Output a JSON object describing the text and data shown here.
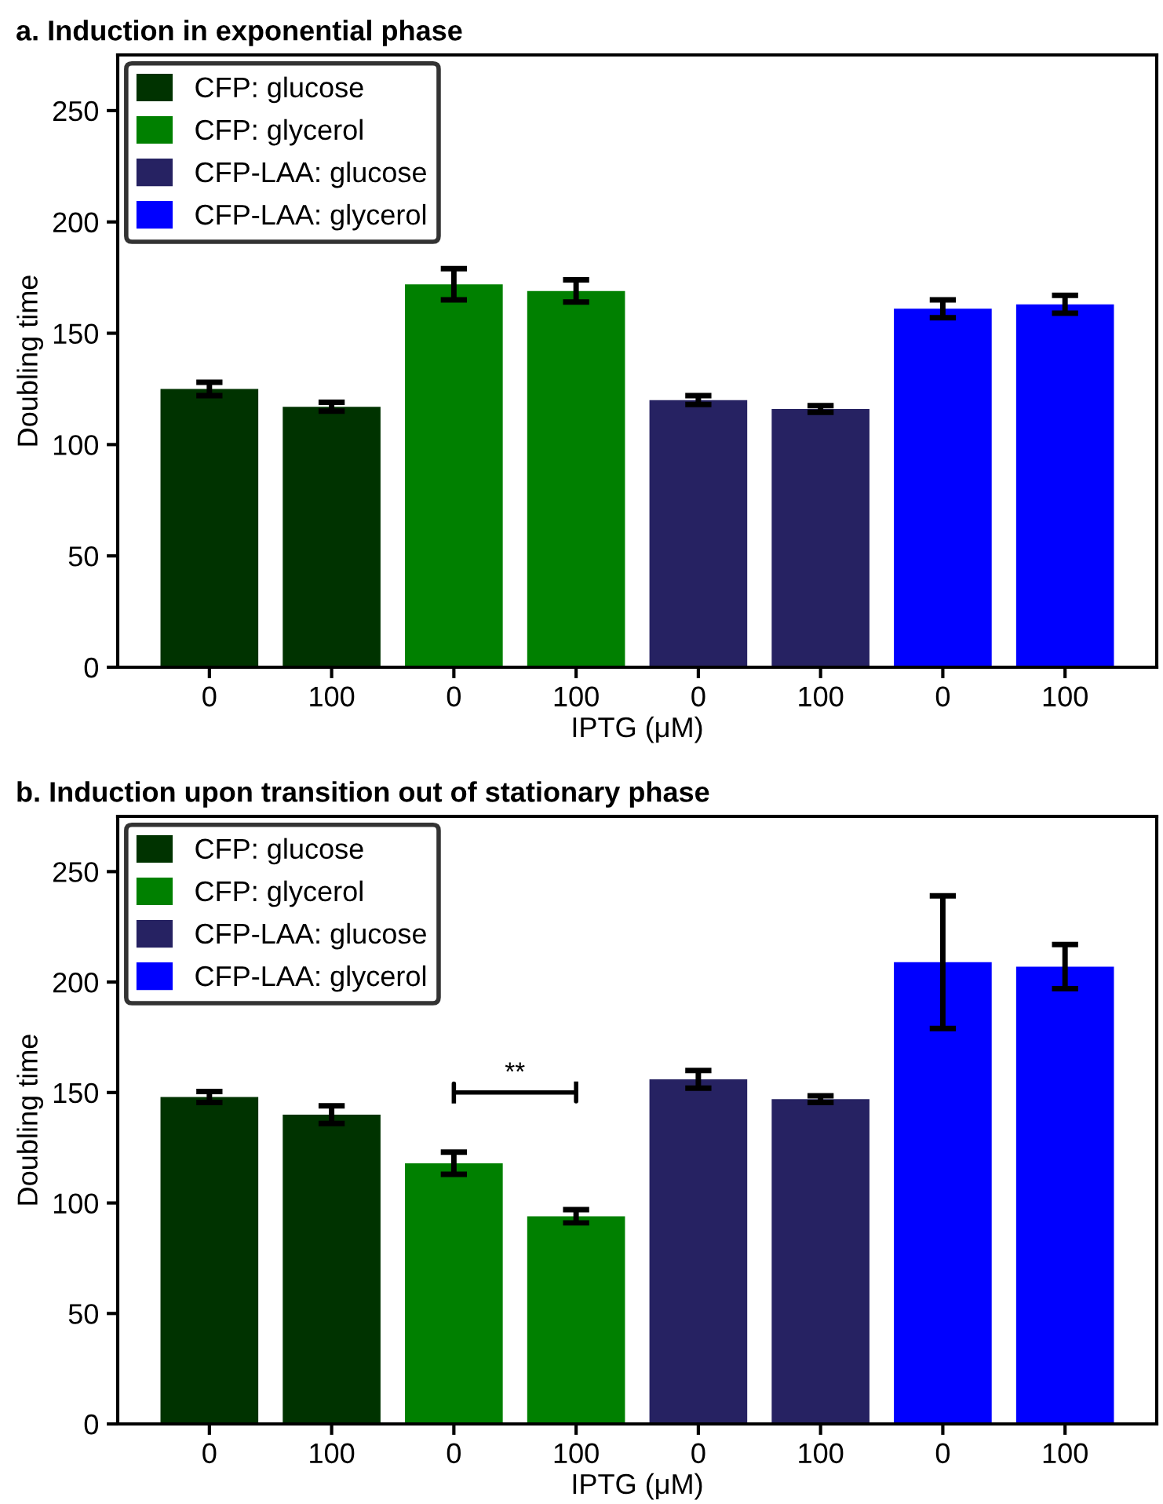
{
  "chart_data": [
    {
      "type": "bar",
      "title": "a. Induction in exponential phase",
      "xlabel": "IPTG (μM)",
      "ylabel": "Doubling time",
      "categories": [
        "0",
        "100",
        "0",
        "100",
        "0",
        "100",
        "0",
        "100"
      ],
      "series": [
        {
          "name": "CFP: glucose",
          "color": "#003300",
          "values": [
            125,
            117,
            null,
            null,
            null,
            null,
            null,
            null
          ],
          "errors": [
            3,
            2,
            null,
            null,
            null,
            null,
            null,
            null
          ]
        },
        {
          "name": "CFP: glycerol",
          "color": "#008000",
          "values": [
            null,
            null,
            172,
            169,
            null,
            null,
            null,
            null
          ],
          "errors": [
            null,
            null,
            7,
            5,
            null,
            null,
            null,
            null
          ]
        },
        {
          "name": "CFP-LAA: glucose",
          "color": "#262262",
          "values": [
            null,
            null,
            null,
            null,
            120,
            116,
            null,
            null
          ],
          "errors": [
            null,
            null,
            null,
            null,
            2,
            1.5,
            null,
            null
          ]
        },
        {
          "name": "CFP-LAA: glycerol",
          "color": "#0000ff",
          "values": [
            null,
            null,
            null,
            null,
            null,
            null,
            161,
            163
          ],
          "errors": [
            null,
            null,
            null,
            null,
            null,
            null,
            4,
            4
          ]
        }
      ],
      "ylim": [
        0,
        275
      ],
      "yticks": [
        0,
        50,
        100,
        150,
        200,
        250
      ],
      "legend": "top left",
      "grid": false
    },
    {
      "type": "bar",
      "title": "b. Induction upon transition out of stationary phase",
      "xlabel": "IPTG (μM)",
      "ylabel": "Doubling time",
      "categories": [
        "0",
        "100",
        "0",
        "100",
        "0",
        "100",
        "0",
        "100"
      ],
      "series": [
        {
          "name": "CFP: glucose",
          "color": "#003300",
          "values": [
            148,
            140,
            null,
            null,
            null,
            null,
            null,
            null
          ],
          "errors": [
            2.5,
            4,
            null,
            null,
            null,
            null,
            null,
            null
          ]
        },
        {
          "name": "CFP: glycerol",
          "color": "#008000",
          "values": [
            null,
            null,
            118,
            94,
            null,
            null,
            null,
            null
          ],
          "errors": [
            null,
            null,
            5,
            3,
            null,
            null,
            null,
            null
          ]
        },
        {
          "name": "CFP-LAA: glucose",
          "color": "#262262",
          "values": [
            null,
            null,
            null,
            null,
            156,
            147,
            null,
            null
          ],
          "errors": [
            null,
            null,
            null,
            null,
            4,
            1.5,
            null,
            null
          ]
        },
        {
          "name": "CFP-LAA: glycerol",
          "color": "#0000ff",
          "values": [
            null,
            null,
            null,
            null,
            null,
            null,
            209,
            207
          ],
          "errors": [
            null,
            null,
            null,
            null,
            null,
            null,
            30,
            10
          ]
        }
      ],
      "annotations": [
        "**"
      ],
      "ylim": [
        0,
        275
      ],
      "yticks": [
        0,
        50,
        100,
        150,
        200,
        250
      ],
      "legend": "top left",
      "grid": false
    }
  ]
}
